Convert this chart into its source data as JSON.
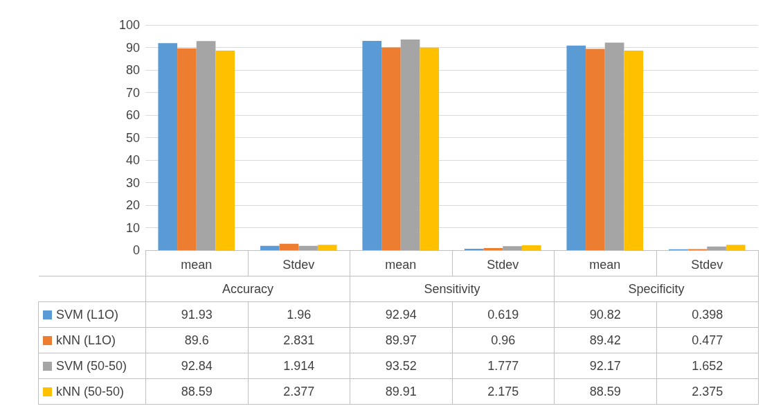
{
  "chart_data": {
    "type": "bar",
    "categories": [
      "mean",
      "Stdev",
      "mean",
      "Stdev",
      "mean",
      "Stdev"
    ],
    "annotations": [
      "Accuracy",
      "Sensitivity",
      "Specificity"
    ],
    "series": [
      {
        "name": "SVM (L1O)",
        "color": "#5b9bd5",
        "values": [
          91.93,
          1.96,
          92.94,
          0.619,
          90.82,
          0.398
        ]
      },
      {
        "name": "kNN (L1O)",
        "color": "#ed7d31",
        "values": [
          89.6,
          2.831,
          89.97,
          0.96,
          89.42,
          0.477
        ]
      },
      {
        "name": "SVM (50-50)",
        "color": "#a5a5a5",
        "values": [
          92.84,
          1.914,
          93.52,
          1.777,
          92.17,
          1.652
        ]
      },
      {
        "name": "kNN (50-50)",
        "color": "#ffc000",
        "values": [
          88.59,
          2.377,
          89.91,
          2.175,
          88.59,
          2.375
        ]
      }
    ],
    "ylim": [
      0,
      100
    ],
    "yticks": [
      0,
      10,
      20,
      30,
      40,
      50,
      60,
      70,
      80,
      90,
      100
    ],
    "grid": "y",
    "legend": "bottom left",
    "data_labels": true
  }
}
